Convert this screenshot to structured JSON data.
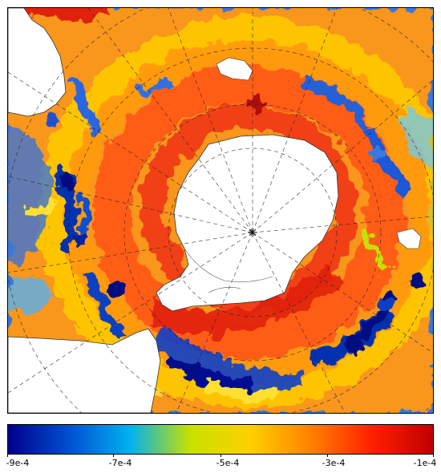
{
  "colorbar": {
    "tick_labels": [
      "-9e-4",
      "-7e-4",
      "-5e-4",
      "-3e-4",
      "-1e-4"
    ],
    "colors": [
      "#00008b",
      "#0050d0",
      "#00b0f0",
      "#c8e000",
      "#ffd000",
      "#ff8000",
      "#ff2000",
      "#c00000"
    ]
  }
}
